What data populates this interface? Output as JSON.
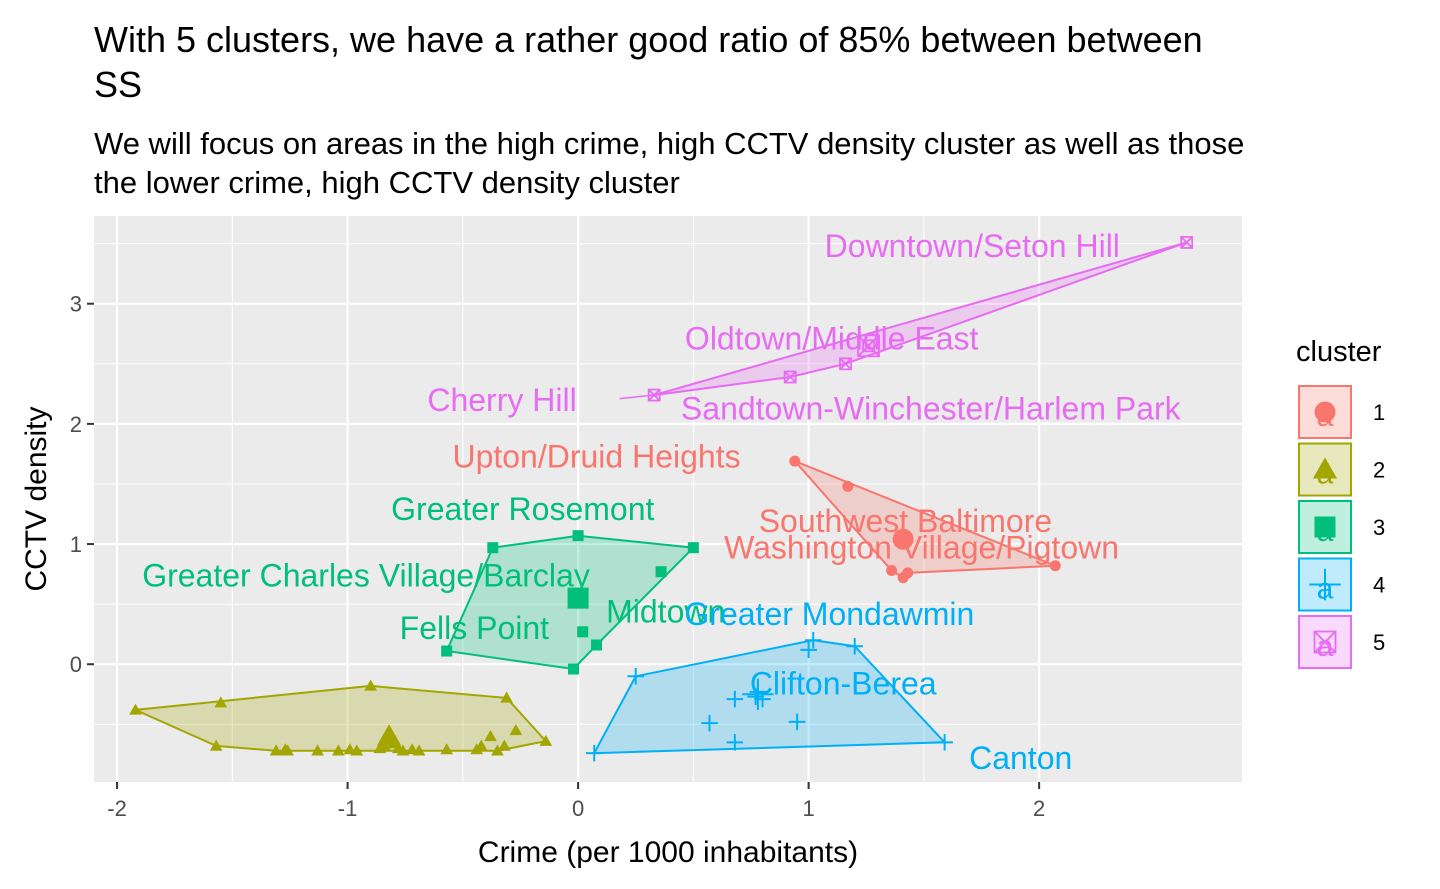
{
  "chart_data": {
    "type": "scatter",
    "title": "With 5 clusters, we have a rather good ratio of 85% between between SS",
    "title_lines": [
      "With 5 clusters, we have a rather good ratio of 85% between between",
      "SS"
    ],
    "subtitle_lines": [
      "We will focus on areas in the high crime, high CCTV density cluster as well as those",
      "the lower crime, high CCTV density cluster"
    ],
    "xlabel": "Crime (per 1000 inhabitants)",
    "ylabel": "CCTV density",
    "xlim": [
      -2.1,
      2.88
    ],
    "ylim": [
      -0.98,
      3.73
    ],
    "x_ticks": [
      -2,
      -1,
      0,
      1,
      2
    ],
    "x_tick_labels": [
      "-2",
      "-1",
      "0",
      "1",
      "2"
    ],
    "y_ticks": [
      0,
      1,
      2,
      3
    ],
    "y_tick_labels": [
      "0",
      "1",
      "2",
      "3"
    ],
    "grid": true,
    "panel_background": "#ebebeb",
    "legend": {
      "title": "cluster",
      "position": "right",
      "entries": [
        "1",
        "2",
        "3",
        "4",
        "5"
      ]
    },
    "series": [
      {
        "name": "1",
        "color": "#F8766D",
        "shape": "circle",
        "points": [
          [
            0.94,
            1.69
          ],
          [
            1.17,
            1.48
          ],
          [
            1.41,
            1.04
          ],
          [
            1.36,
            0.78
          ],
          [
            1.41,
            0.72
          ],
          [
            1.43,
            0.76
          ],
          [
            2.07,
            0.82
          ]
        ],
        "big_point": [
          1.41,
          1.04
        ],
        "hull": [
          [
            0.94,
            1.69
          ],
          [
            2.07,
            0.82
          ],
          [
            1.43,
            0.76
          ],
          [
            1.41,
            0.72
          ],
          [
            1.36,
            0.78
          ]
        ]
      },
      {
        "name": "2",
        "color": "#A3A500",
        "shape": "triangle",
        "points": [
          [
            -1.92,
            -0.38
          ],
          [
            -1.55,
            -0.32
          ],
          [
            -1.57,
            -0.68
          ],
          [
            -1.31,
            -0.72
          ],
          [
            -1.27,
            -0.71
          ],
          [
            -1.26,
            -0.72
          ],
          [
            -1.13,
            -0.72
          ],
          [
            -1.04,
            -0.72
          ],
          [
            -0.99,
            -0.71
          ],
          [
            -0.96,
            -0.72
          ],
          [
            -0.9,
            -0.18
          ],
          [
            -0.86,
            -0.7
          ],
          [
            -0.84,
            -0.68
          ],
          [
            -0.82,
            -0.6
          ],
          [
            -0.8,
            -0.66
          ],
          [
            -0.78,
            -0.7
          ],
          [
            -0.76,
            -0.72
          ],
          [
            -0.72,
            -0.71
          ],
          [
            -0.69,
            -0.72
          ],
          [
            -0.57,
            -0.71
          ],
          [
            -0.44,
            -0.71
          ],
          [
            -0.42,
            -0.68
          ],
          [
            -0.38,
            -0.6
          ],
          [
            -0.35,
            -0.72
          ],
          [
            -0.32,
            -0.68
          ],
          [
            -0.31,
            -0.28
          ],
          [
            -0.27,
            -0.55
          ],
          [
            -0.14,
            -0.64
          ]
        ],
        "big_point": [
          -0.82,
          -0.6
        ],
        "hull": [
          [
            -1.92,
            -0.38
          ],
          [
            -0.9,
            -0.18
          ],
          [
            -0.31,
            -0.28
          ],
          [
            -0.14,
            -0.64
          ],
          [
            -0.35,
            -0.72
          ],
          [
            -1.31,
            -0.72
          ],
          [
            -1.57,
            -0.68
          ]
        ]
      },
      {
        "name": "3",
        "color": "#00BF7D",
        "shape": "square",
        "points": [
          [
            -0.37,
            0.97
          ],
          [
            0.0,
            1.07
          ],
          [
            0.5,
            0.97
          ],
          [
            0.36,
            0.77
          ],
          [
            0.0,
            0.55
          ],
          [
            0.02,
            0.27
          ],
          [
            0.08,
            0.16
          ],
          [
            -0.02,
            -0.04
          ],
          [
            -0.57,
            0.11
          ]
        ],
        "big_point": [
          0.0,
          0.55
        ],
        "hull": [
          [
            -0.37,
            0.97
          ],
          [
            0.0,
            1.07
          ],
          [
            0.5,
            0.97
          ],
          [
            0.08,
            0.16
          ],
          [
            -0.02,
            -0.04
          ],
          [
            -0.57,
            0.11
          ]
        ]
      },
      {
        "name": "4",
        "color": "#00B0F6",
        "shape": "plus",
        "points": [
          [
            0.25,
            -0.1
          ],
          [
            1.02,
            0.2
          ],
          [
            1.0,
            0.12
          ],
          [
            1.2,
            0.15
          ],
          [
            0.57,
            -0.49
          ],
          [
            0.68,
            -0.29
          ],
          [
            0.77,
            -0.27
          ],
          [
            0.8,
            -0.29
          ],
          [
            0.95,
            -0.48
          ],
          [
            0.68,
            -0.65
          ],
          [
            0.07,
            -0.74
          ],
          [
            1.59,
            -0.65
          ],
          [
            0.78,
            -0.23
          ]
        ],
        "big_point": [
          0.78,
          -0.25
        ],
        "hull": [
          [
            0.25,
            -0.1
          ],
          [
            1.02,
            0.2
          ],
          [
            1.2,
            0.15
          ],
          [
            1.59,
            -0.65
          ],
          [
            0.07,
            -0.74
          ]
        ]
      },
      {
        "name": "5",
        "color": "#E76BF3",
        "shape": "square-x",
        "points": [
          [
            2.64,
            3.51
          ],
          [
            1.16,
            2.5
          ],
          [
            0.92,
            2.39
          ],
          [
            0.33,
            2.24
          ],
          [
            1.26,
            2.65
          ]
        ],
        "big_point": [
          1.26,
          2.65
        ],
        "hull": [
          [
            2.64,
            3.51
          ],
          [
            0.33,
            2.24
          ],
          [
            0.92,
            2.39
          ],
          [
            1.16,
            2.5
          ]
        ]
      }
    ],
    "annotations": [
      {
        "text": "Downtown/Seton Hill",
        "x": 1.71,
        "y": 3.48,
        "series": "5",
        "anchor": "middle"
      },
      {
        "text": "Oldtown/Middle East",
        "x": 1.1,
        "y": 2.71,
        "series": "5",
        "anchor": "middle"
      },
      {
        "text": "Cherry Hill",
        "x": -0.33,
        "y": 2.2,
        "series": "5",
        "anchor": "middle"
      },
      {
        "text": "Sandtown-Winchester/Harlem Park",
        "x": 1.53,
        "y": 2.13,
        "series": "5",
        "anchor": "middle"
      },
      {
        "text": "Upton/Druid Heights",
        "x": 0.08,
        "y": 1.73,
        "series": "1",
        "anchor": "middle"
      },
      {
        "text": "Southwest Baltimore",
        "x": 1.42,
        "y": 1.19,
        "series": "1",
        "anchor": "middle"
      },
      {
        "text": "Washington Village/Pigtown",
        "x": 1.49,
        "y": 0.97,
        "series": "1",
        "anchor": "middle"
      },
      {
        "text": "Greater Rosemont",
        "x": -0.24,
        "y": 1.29,
        "series": "3",
        "anchor": "middle"
      },
      {
        "text": "Greater Charles Village/Barclay",
        "x": -0.92,
        "y": 0.74,
        "series": "3",
        "anchor": "middle"
      },
      {
        "text": "Midtown",
        "x": 0.38,
        "y": 0.44,
        "series": "3",
        "anchor": "middle"
      },
      {
        "text": "Fells Point",
        "x": -0.45,
        "y": 0.3,
        "series": "3",
        "anchor": "middle"
      },
      {
        "text": "Greater Mondawmin",
        "x": 1.09,
        "y": 0.42,
        "series": "4",
        "anchor": "middle"
      },
      {
        "text": "Clifton-Berea",
        "x": 1.15,
        "y": -0.16,
        "series": "4",
        "anchor": "middle"
      },
      {
        "text": "Canton",
        "x": 1.92,
        "y": -0.78,
        "series": "4",
        "anchor": "middle"
      }
    ]
  }
}
